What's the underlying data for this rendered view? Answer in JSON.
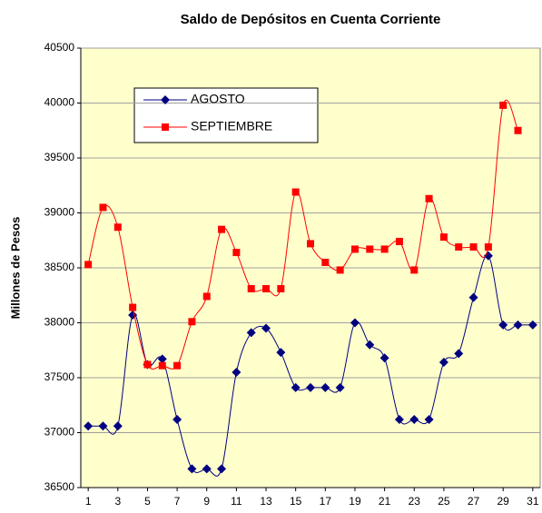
{
  "chart_data": {
    "type": "line",
    "title": "Saldo de Depósitos en Cuenta Corriente",
    "y_label": "Millones de Pesos",
    "x": [
      1,
      2,
      3,
      4,
      5,
      6,
      7,
      8,
      9,
      10,
      11,
      12,
      13,
      14,
      15,
      16,
      17,
      18,
      19,
      20,
      21,
      22,
      23,
      24,
      25,
      26,
      27,
      28,
      29,
      30,
      31
    ],
    "xlim": [
      0.5,
      31.5
    ],
    "xticks": [
      1,
      3,
      5,
      7,
      9,
      11,
      13,
      15,
      17,
      19,
      21,
      23,
      25,
      27,
      29,
      31
    ],
    "ylim": [
      36500,
      40500
    ],
    "yticks": [
      36500,
      37000,
      37500,
      38000,
      38500,
      39000,
      39500,
      40000,
      40500
    ],
    "grid": true,
    "legend": "upper left",
    "series": [
      {
        "name": "AGOSTO",
        "color": "#000080",
        "marker": "diamond",
        "values": [
          37060,
          37060,
          37060,
          38070,
          37620,
          37670,
          37120,
          36670,
          36670,
          36670,
          37550,
          37910,
          37950,
          37730,
          37410,
          37410,
          37410,
          37410,
          38000,
          37800,
          37680,
          37120,
          37120,
          37120,
          37640,
          37720,
          38230,
          38610,
          37980,
          37980,
          37980
        ]
      },
      {
        "name": "SEPTIEMBRE",
        "color": "#ff0000",
        "marker": "square",
        "values": [
          38530,
          39050,
          38870,
          38140,
          37620,
          37610,
          37610,
          38010,
          38240,
          38850,
          38640,
          38310,
          38310,
          38310,
          39190,
          38720,
          38550,
          38480,
          38670,
          38670,
          38670,
          38740,
          38480,
          39130,
          38780,
          38690,
          38690,
          38690,
          39980,
          39750,
          null
        ]
      }
    ]
  }
}
